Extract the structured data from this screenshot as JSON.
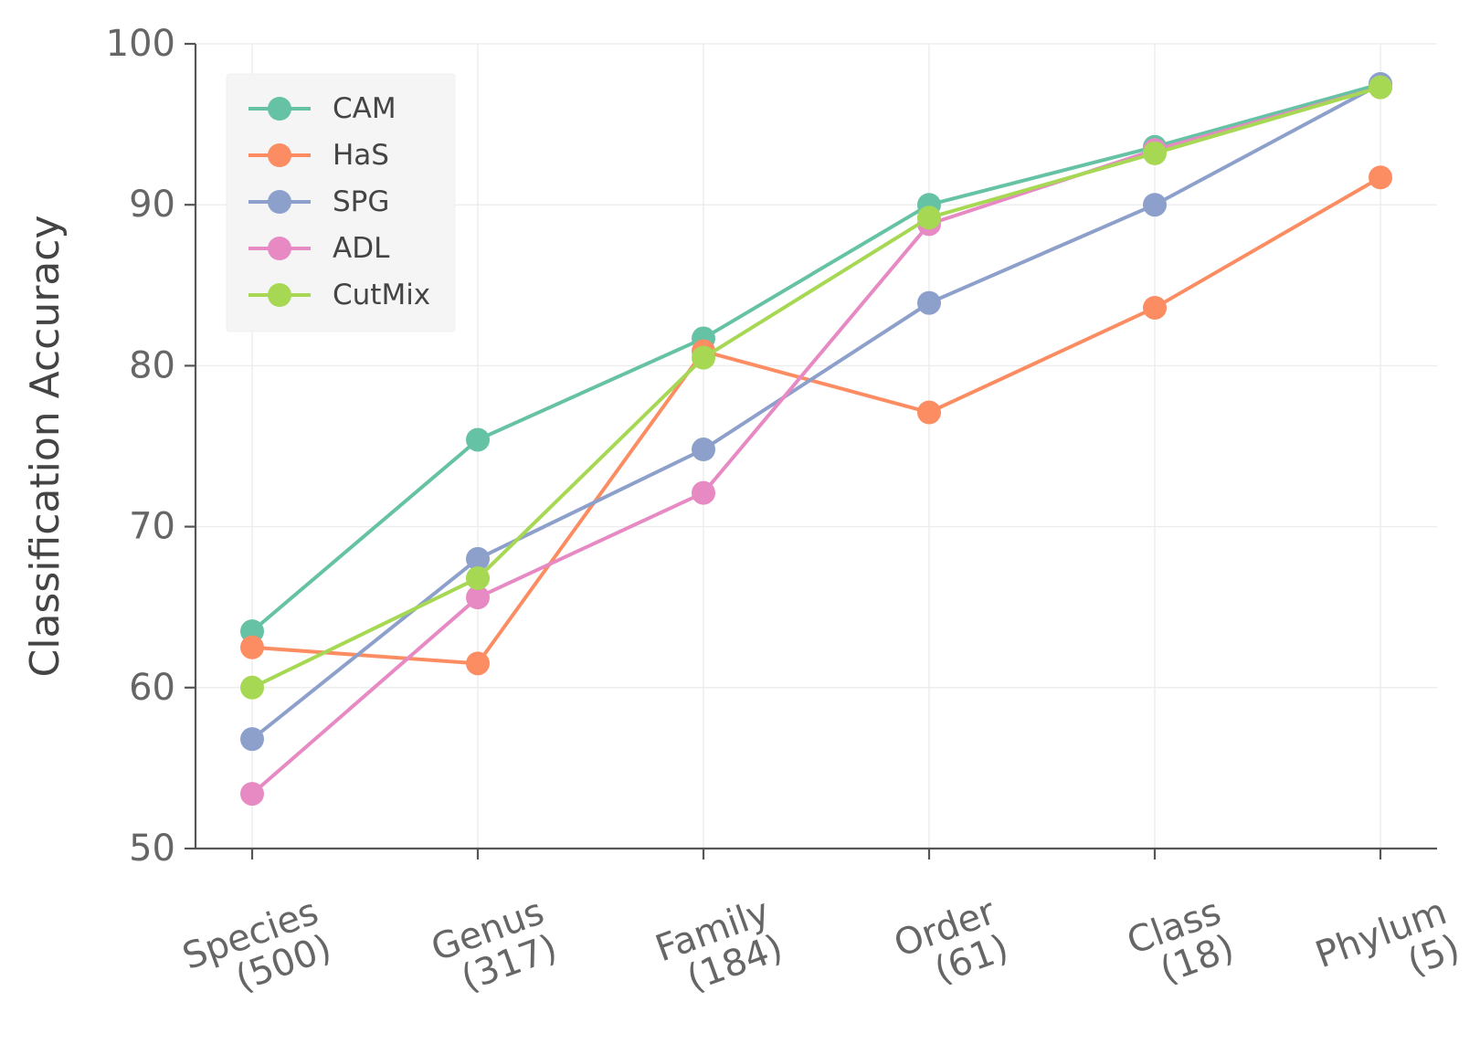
{
  "chart_data": {
    "type": "line",
    "title": "",
    "xlabel": "",
    "ylabel": "Classification Accuracy",
    "categories": [
      [
        "Species",
        "(500)"
      ],
      [
        "Genus",
        "(317)"
      ],
      [
        "Family",
        "(184)"
      ],
      [
        "Order",
        "(61)"
      ],
      [
        "Class",
        "(18)"
      ],
      [
        "Phylum",
        "(5)"
      ]
    ],
    "ylim": [
      50,
      100
    ],
    "yticks": [
      50,
      60,
      70,
      80,
      90,
      100
    ],
    "grid": true,
    "legend_position": "upper-left",
    "series": [
      {
        "name": "CAM",
        "color": "#66c2a5",
        "values": [
          63.5,
          75.4,
          81.7,
          90.0,
          93.6,
          97.5
        ]
      },
      {
        "name": "HaS",
        "color": "#fc8d62",
        "values": [
          62.5,
          61.5,
          80.9,
          77.1,
          83.6,
          91.7
        ]
      },
      {
        "name": "SPG",
        "color": "#8da0cb",
        "values": [
          56.8,
          68.0,
          74.8,
          83.9,
          90.0,
          97.5
        ]
      },
      {
        "name": "ADL",
        "color": "#e78ac3",
        "values": [
          53.4,
          65.6,
          72.1,
          88.8,
          93.4,
          97.3
        ]
      },
      {
        "name": "CutMix",
        "color": "#a6d854",
        "values": [
          60.0,
          66.8,
          80.5,
          89.2,
          93.2,
          97.3
        ]
      }
    ]
  }
}
